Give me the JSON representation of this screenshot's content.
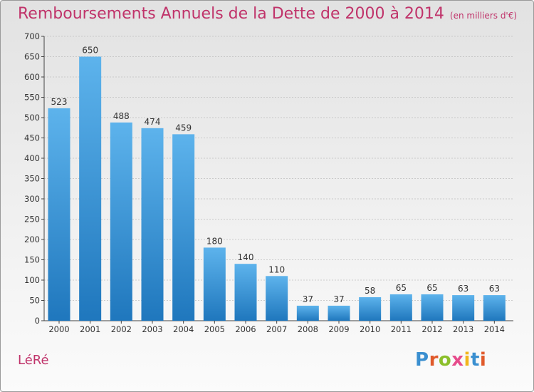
{
  "title": "Remboursements Annuels de la Dette de 2000 à 2014",
  "unit": "(en milliers d'€)",
  "location": "LéRé",
  "logo": {
    "text": "Proxiti",
    "letter_colors": [
      "#3a8fd0",
      "#e05a2b",
      "#8bbf2a",
      "#e64b8b",
      "#f2b51c",
      "#3a8fd0",
      "#e05a2b"
    ]
  },
  "colors": {
    "title": "#c0336a",
    "bar_top": "#5db3ec",
    "bar_bottom": "#1f77bd",
    "axis_text": "#333333",
    "grid": "#bfbfbf"
  },
  "chart_data": {
    "type": "bar",
    "categories": [
      "2000",
      "2001",
      "2002",
      "2003",
      "2004",
      "2005",
      "2006",
      "2007",
      "2008",
      "2009",
      "2010",
      "2011",
      "2012",
      "2013",
      "2014"
    ],
    "values": [
      523,
      650,
      488,
      474,
      459,
      180,
      140,
      110,
      37,
      37,
      58,
      65,
      65,
      63,
      63
    ],
    "ylim": [
      0,
      700
    ],
    "yticks": [
      0,
      50,
      100,
      150,
      200,
      250,
      300,
      350,
      400,
      450,
      500,
      550,
      600,
      650,
      700
    ],
    "grid": true,
    "xlabel": "",
    "ylabel": ""
  }
}
